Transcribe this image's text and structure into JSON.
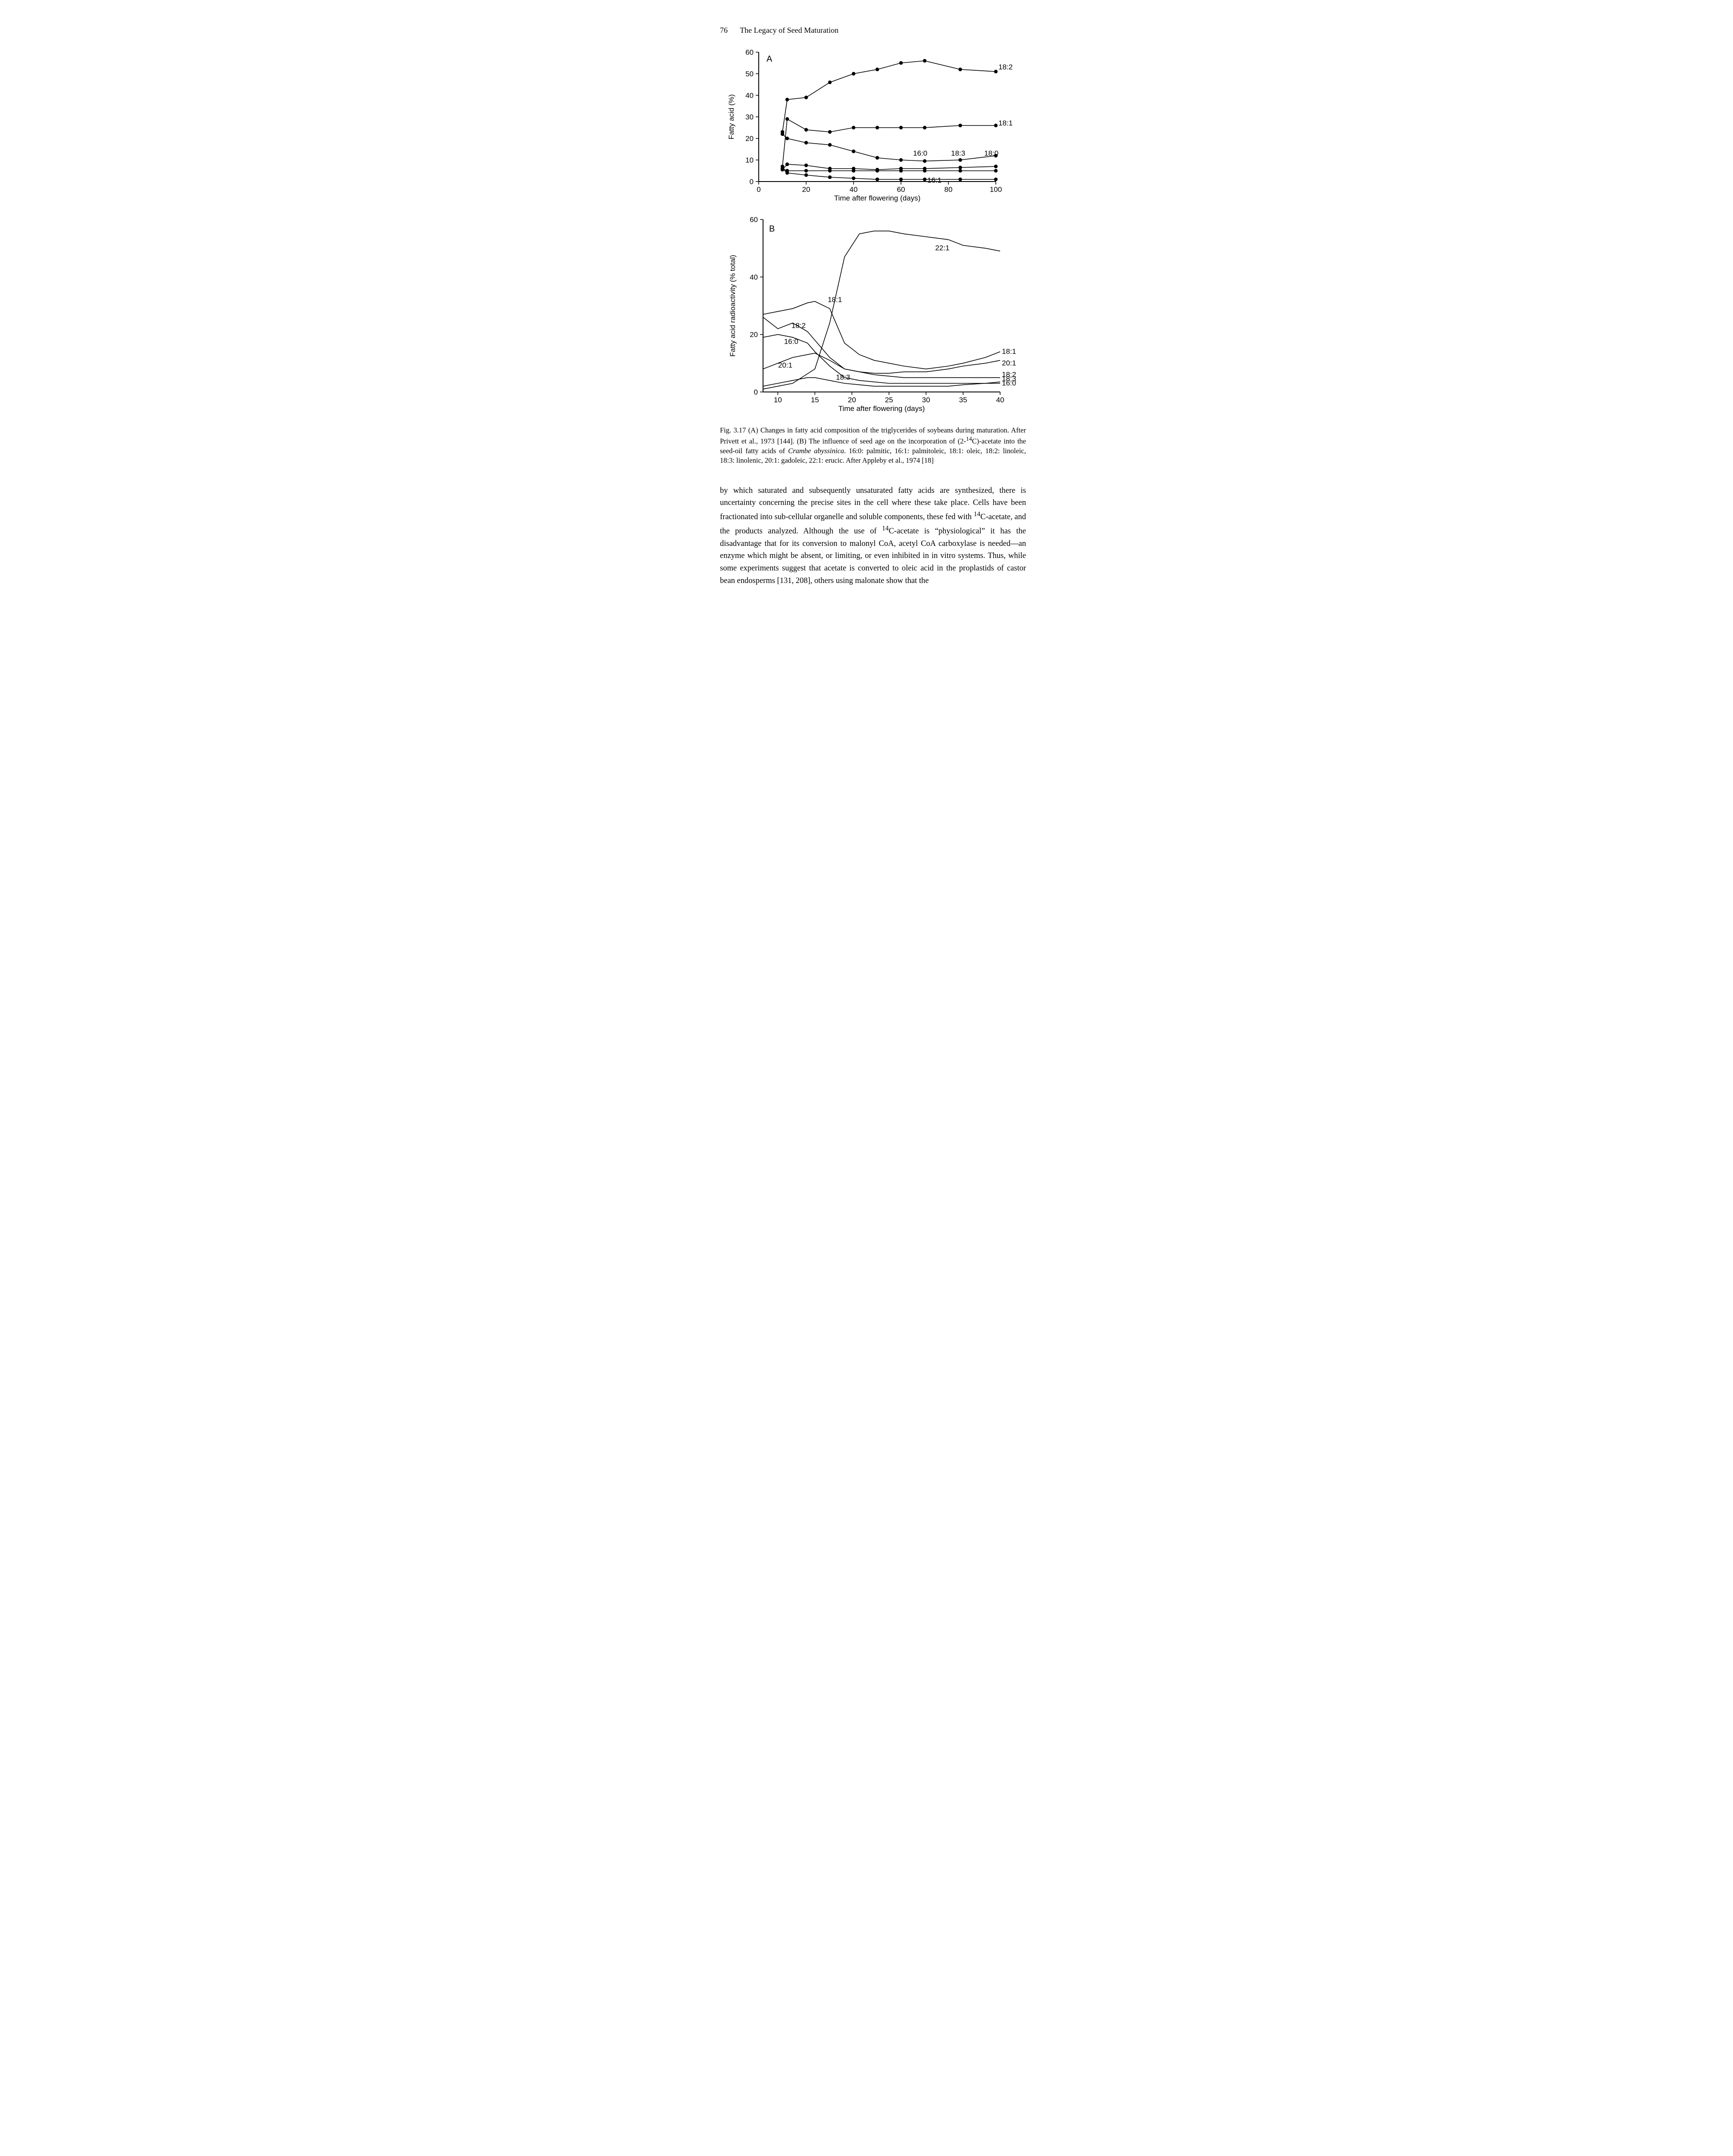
{
  "header": {
    "page_number": "76",
    "title": "The Legacy of Seed Maturation"
  },
  "figureA": {
    "type": "line",
    "panel_letter": "A",
    "xlabel": "Time  after  flowering  (days)",
    "ylabel": "Fatty acid  (%)",
    "xlim": [
      0,
      100
    ],
    "ylim": [
      0,
      60
    ],
    "xticks": [
      0,
      20,
      40,
      60,
      80,
      100
    ],
    "yticks": [
      0,
      10,
      20,
      30,
      40,
      50,
      60
    ],
    "background_color": "#ffffff",
    "line_color": "#000000",
    "line_width": 1.6,
    "marker": "filled-circle",
    "marker_size": 4.2,
    "series": {
      "s182": {
        "label": "18:2",
        "label_x": 100,
        "label_y": 53,
        "points": [
          [
            10,
            23
          ],
          [
            12,
            38
          ],
          [
            20,
            39
          ],
          [
            30,
            46
          ],
          [
            40,
            50
          ],
          [
            50,
            52
          ],
          [
            60,
            55
          ],
          [
            70,
            56
          ],
          [
            85,
            52
          ],
          [
            100,
            51
          ]
        ]
      },
      "s181": {
        "label": "18:1",
        "label_x": 100,
        "label_y": 27,
        "points": [
          [
            10,
            7
          ],
          [
            12,
            29
          ],
          [
            20,
            24
          ],
          [
            30,
            23
          ],
          [
            40,
            25
          ],
          [
            50,
            25
          ],
          [
            60,
            25
          ],
          [
            70,
            25
          ],
          [
            85,
            26
          ],
          [
            100,
            26
          ]
        ]
      },
      "s160": {
        "label": "16:0",
        "label_x": 64,
        "label_y": 13,
        "points": [
          [
            10,
            22
          ],
          [
            12,
            20
          ],
          [
            20,
            18
          ],
          [
            30,
            17
          ],
          [
            40,
            14
          ],
          [
            50,
            11
          ],
          [
            60,
            10
          ],
          [
            70,
            9.5
          ],
          [
            85,
            10
          ],
          [
            100,
            12
          ]
        ]
      },
      "s183": {
        "label": "18:3",
        "label_x": 80,
        "label_y": 13,
        "points": [
          [
            10,
            5.5
          ],
          [
            12,
            8
          ],
          [
            20,
            7.5
          ],
          [
            30,
            6
          ],
          [
            40,
            6
          ],
          [
            50,
            5.5
          ],
          [
            60,
            6
          ],
          [
            70,
            6
          ],
          [
            85,
            6.5
          ],
          [
            100,
            7
          ]
        ]
      },
      "s180": {
        "label": "18:0",
        "label_x": 94,
        "label_y": 13,
        "points": [
          [
            10,
            6
          ],
          [
            12,
            5
          ],
          [
            20,
            5
          ],
          [
            30,
            5
          ],
          [
            40,
            5
          ],
          [
            50,
            5
          ],
          [
            60,
            5
          ],
          [
            70,
            5
          ],
          [
            85,
            5
          ],
          [
            100,
            5
          ]
        ]
      },
      "s161": {
        "label": "16:1",
        "label_x": 70,
        "label_y": 0.5,
        "points": [
          [
            10,
            6
          ],
          [
            12,
            4
          ],
          [
            20,
            3
          ],
          [
            30,
            2
          ],
          [
            40,
            1.5
          ],
          [
            50,
            1
          ],
          [
            60,
            1
          ],
          [
            70,
            1
          ],
          [
            85,
            1
          ],
          [
            100,
            1
          ]
        ]
      }
    }
  },
  "figureB": {
    "type": "line",
    "panel_letter": "B",
    "xlabel": "Time  after  flowering  (days)",
    "ylabel": "Fatty  acid  radioactivity  (% total)",
    "xlim": [
      8,
      40
    ],
    "ylim": [
      0,
      60
    ],
    "xticks": [
      10,
      15,
      20,
      25,
      30,
      35,
      40
    ],
    "yticks": [
      0,
      20,
      40,
      60
    ],
    "background_color": "#ffffff",
    "line_color": "#000000",
    "line_width": 1.6,
    "series": {
      "s221": {
        "label": "22:1",
        "label_x": 31,
        "label_y": 50,
        "points": [
          [
            8,
            1
          ],
          [
            10,
            2
          ],
          [
            12,
            3
          ],
          [
            15,
            8
          ],
          [
            17,
            24
          ],
          [
            19,
            47
          ],
          [
            21,
            55
          ],
          [
            23,
            56
          ],
          [
            25,
            56
          ],
          [
            27,
            55
          ],
          [
            30,
            54
          ],
          [
            33,
            53
          ],
          [
            35,
            51
          ],
          [
            38,
            50
          ],
          [
            40,
            49
          ]
        ]
      },
      "s181b": {
        "label": "18:1",
        "label_x": 16.5,
        "label_y": 32,
        "points": [
          [
            8,
            27
          ],
          [
            10,
            28
          ],
          [
            12,
            29
          ],
          [
            14,
            31
          ],
          [
            15,
            31.5
          ],
          [
            17,
            29
          ],
          [
            19,
            17
          ],
          [
            21,
            13
          ],
          [
            23,
            11
          ],
          [
            25,
            10
          ],
          [
            27,
            9
          ],
          [
            30,
            8
          ],
          [
            33,
            9
          ],
          [
            35,
            10
          ],
          [
            38,
            12
          ],
          [
            40,
            14
          ]
        ]
      },
      "s181b_lab2": {
        "label": "18:1",
        "label_x": 40,
        "label_y": 14
      },
      "s182b": {
        "label": "18:2",
        "label_x": 11.6,
        "label_y": 23,
        "points": [
          [
            8,
            26
          ],
          [
            10,
            22
          ],
          [
            12,
            24
          ],
          [
            14,
            21
          ],
          [
            15,
            18
          ],
          [
            17,
            12
          ],
          [
            19,
            8
          ],
          [
            21,
            7
          ],
          [
            23,
            6
          ],
          [
            25,
            5.5
          ],
          [
            27,
            5
          ],
          [
            30,
            5
          ],
          [
            33,
            5
          ],
          [
            35,
            5
          ],
          [
            38,
            5
          ],
          [
            40,
            5
          ]
        ]
      },
      "s182b_lab2": {
        "label": "18:2",
        "label_x": 40,
        "label_y": 6
      },
      "s160b": {
        "label": "16:0",
        "label_x": 10.6,
        "label_y": 17.5,
        "points": [
          [
            8,
            19
          ],
          [
            10,
            20
          ],
          [
            12,
            19
          ],
          [
            14,
            17
          ],
          [
            15,
            14
          ],
          [
            17,
            9
          ],
          [
            19,
            5
          ],
          [
            21,
            4
          ],
          [
            23,
            3.5
          ],
          [
            25,
            3
          ],
          [
            27,
            3
          ],
          [
            30,
            3
          ],
          [
            33,
            3
          ],
          [
            35,
            3
          ],
          [
            38,
            3
          ],
          [
            40,
            3
          ]
        ]
      },
      "s160b_lab2": {
        "label": "16:0",
        "label_x": 40,
        "label_y": 3
      },
      "s201": {
        "label": "20:1",
        "label_x": 9.8,
        "label_y": 9.2,
        "points": [
          [
            8,
            8
          ],
          [
            10,
            10
          ],
          [
            12,
            12
          ],
          [
            14,
            13
          ],
          [
            15,
            13.5
          ],
          [
            17,
            11
          ],
          [
            19,
            8
          ],
          [
            21,
            7
          ],
          [
            23,
            6.5
          ],
          [
            25,
            6.5
          ],
          [
            27,
            7
          ],
          [
            30,
            7
          ],
          [
            33,
            8
          ],
          [
            35,
            9
          ],
          [
            38,
            10
          ],
          [
            40,
            11
          ]
        ]
      },
      "s201_lab2": {
        "label": "20:1",
        "label_x": 40,
        "label_y": 10
      },
      "s183b": {
        "label": "18:3",
        "label_x": 17.6,
        "label_y": 5,
        "points": [
          [
            8,
            2
          ],
          [
            10,
            3
          ],
          [
            12,
            4
          ],
          [
            14,
            5
          ],
          [
            15,
            5
          ],
          [
            17,
            4
          ],
          [
            19,
            3
          ],
          [
            21,
            2.5
          ],
          [
            23,
            2
          ],
          [
            25,
            2
          ],
          [
            27,
            2
          ],
          [
            30,
            2
          ],
          [
            33,
            2
          ],
          [
            35,
            2.5
          ],
          [
            38,
            3
          ],
          [
            40,
            3.5
          ]
        ]
      },
      "s183b_lab2": {
        "label": "18:3",
        "label_x": 40,
        "label_y": 4.5
      }
    }
  },
  "caption": {
    "text_parts": [
      "Fig. 3.17 (A) Changes in fatty acid composition of the triglycerides of soybeans during maturation. After Privett et al., 1973 [144]. (B) The influence of seed age on the incorporation of (2-",
      "C)-acetate into the seed-oil fatty acids of ",
      ". 16:0: palmitic, 16:1: palmitoleic, 18:1: oleic, 18:2: linoleic, 18:3: linolenic, 20:1: gadoleic, 22:1: erucic. After Appleby et al., 1974 [18]"
    ],
    "super14": "14",
    "italic_species": "Crambe abyssinica"
  },
  "body": {
    "text_parts": [
      "by which saturated and subsequently unsaturated fatty acids are synthesized, there is uncertainty concerning the precise sites in the cell where these take place. Cells have been fractionated into sub-cellular organelle and soluble components, these fed with ",
      "C-acetate, and the products analyzed. Although the use of ",
      "C-acetate is “physiological” it has the disadvantage that for its conversion to malonyl CoA, acetyl CoA carboxylase is needed—an enzyme which might be absent, or limiting, or even inhibited in in vitro systems. Thus, while some experiments suggest that acetate is converted to oleic acid in the proplastids of castor bean endosperms [131, 208], others using malonate show that the"
    ],
    "super14": "14"
  }
}
